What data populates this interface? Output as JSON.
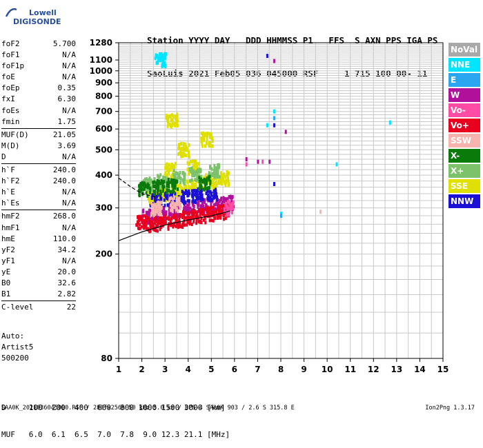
{
  "logo": {
    "line1": "Lowell",
    "line2": "DIGISONDE"
  },
  "header": {
    "line1": "Station YYYY DAY   DDD HHMMSS P1   FFS  S AXN PPS IGA PS",
    "line2": "SaoLuis 2021 Feb05 036 045000 RSF     1 715 100 00- 11"
  },
  "params": {
    "group1": [
      {
        "name": "foF2",
        "value": "5.700"
      },
      {
        "name": "foF1",
        "value": "N/A"
      },
      {
        "name": "foF1p",
        "value": "N/A"
      },
      {
        "name": "foE",
        "value": "N/A"
      },
      {
        "name": "foEp",
        "value": "0.35"
      },
      {
        "name": "fxI",
        "value": "6.30"
      },
      {
        "name": "foEs",
        "value": "N/A"
      },
      {
        "name": "fmin",
        "value": "1.75"
      }
    ],
    "group2": [
      {
        "name": "MUF(D)",
        "value": "21.05"
      },
      {
        "name": "M(D)",
        "value": "3.69"
      },
      {
        "name": "D",
        "value": "N/A"
      }
    ],
    "group3": [
      {
        "name": "h`F",
        "value": "240.0"
      },
      {
        "name": "h`F2",
        "value": "240.0"
      },
      {
        "name": "h`E",
        "value": "N/A"
      },
      {
        "name": "h`Es",
        "value": "N/A"
      }
    ],
    "group4": [
      {
        "name": "hmF2",
        "value": "268.0"
      },
      {
        "name": "hmF1",
        "value": "N/A"
      },
      {
        "name": "hmE",
        "value": "110.0"
      },
      {
        "name": "yF2",
        "value": "34.2"
      },
      {
        "name": "yF1",
        "value": "N/A"
      },
      {
        "name": "yE",
        "value": "20.0"
      },
      {
        "name": "B0",
        "value": "32.6"
      },
      {
        "name": "B1",
        "value": "2.82"
      }
    ],
    "group5": [
      {
        "name": "C-level",
        "value": "22"
      }
    ]
  },
  "auto": {
    "line1": "Auto:",
    "line2": "Artist5",
    "line3": "500200"
  },
  "legend": [
    {
      "label": "NoVal",
      "color": "#a9a9a9"
    },
    {
      "label": "NNE",
      "color": "#00e5ff"
    },
    {
      "label": "E",
      "color": "#2aa6f0"
    },
    {
      "label": "W",
      "color": "#b0109a"
    },
    {
      "label": "Vo-",
      "color": "#ff4da6"
    },
    {
      "label": "Vo+",
      "color": "#e8001e"
    },
    {
      "label": "SSW",
      "color": "#f7b3ae"
    },
    {
      "label": "X-",
      "color": "#0a7a0a"
    },
    {
      "label": "X+",
      "color": "#7cc26a"
    },
    {
      "label": "SSE",
      "color": "#e0e000"
    },
    {
      "label": "NNW",
      "color": "#1a10d6"
    }
  ],
  "muf_table": {
    "line1": "D     100  200  400  600  800 1000 1500 3000 [km]",
    "line2": "MUF   6.0  6.1  6.5  7.0  7.8  9.0 12.3 21.1 [MHz]"
  },
  "footer": {
    "left": "SAA0K_2021036045000.RSF / 280fx256h 50 kHz 5.0 km / DPS-4 SAA0K 903 / 2.6 S 315.8 E",
    "right": "Ion2Png 1.3.17"
  },
  "chart_data": {
    "type": "scatter",
    "xlim": [
      1,
      15
    ],
    "ylim": [
      80,
      1280
    ],
    "x_ticks": [
      1,
      2,
      3,
      4,
      5,
      6,
      7,
      8,
      9,
      10,
      11,
      12,
      13,
      14,
      15
    ],
    "y_ticks": [
      80,
      200,
      300,
      400,
      500,
      600,
      700,
      800,
      900,
      1000,
      1100,
      1280
    ],
    "y_scale": "log",
    "grid": true,
    "series": [
      {
        "name": "SSE",
        "color": "#e0e000",
        "points": [
          [
            2.5,
            330
          ],
          [
            3,
            340
          ],
          [
            3.5,
            350
          ],
          [
            4,
            360
          ],
          [
            4.5,
            370
          ],
          [
            5,
            380
          ],
          [
            5.5,
            390
          ],
          [
            3.2,
            420
          ],
          [
            4.2,
            430
          ],
          [
            3.8,
            500
          ],
          [
            4.8,
            550
          ],
          [
            3.3,
            650
          ]
        ]
      },
      {
        "name": "W",
        "color": "#b0109a",
        "points": [
          [
            2.2,
            280
          ],
          [
            2.8,
            285
          ],
          [
            3.4,
            295
          ],
          [
            4,
            300
          ],
          [
            4.6,
            305
          ],
          [
            5.2,
            310
          ],
          [
            5.7,
            315
          ],
          [
            6.5,
            460
          ],
          [
            7,
            450
          ],
          [
            7.5,
            450
          ],
          [
            7.7,
            1090
          ],
          [
            8.2,
            585
          ]
        ]
      },
      {
        "name": "Vo+",
        "color": "#e8001e",
        "points": [
          [
            2,
            265
          ],
          [
            2.5,
            260
          ],
          [
            3,
            265
          ],
          [
            3.5,
            270
          ],
          [
            4,
            275
          ],
          [
            4.5,
            280
          ],
          [
            5,
            285
          ],
          [
            5.5,
            290
          ]
        ]
      },
      {
        "name": "NNW",
        "color": "#1a10d6",
        "points": [
          [
            2.6,
            320
          ],
          [
            3.2,
            325
          ],
          [
            3.8,
            330
          ],
          [
            4.4,
            335
          ],
          [
            5,
            340
          ],
          [
            7.4,
            1140
          ],
          [
            7.7,
            370
          ],
          [
            7.7,
            620
          ]
        ]
      },
      {
        "name": "NNE",
        "color": "#00e5ff",
        "points": [
          [
            2.8,
            1100
          ],
          [
            7.4,
            620
          ],
          [
            7.7,
            700
          ],
          [
            8,
            285
          ],
          [
            10.4,
            440
          ],
          [
            12.7,
            635
          ]
        ]
      },
      {
        "name": "X+",
        "color": "#7cc26a",
        "points": [
          [
            2.3,
            370
          ],
          [
            2.9,
            380
          ],
          [
            3.6,
            395
          ],
          [
            4.3,
            405
          ],
          [
            5.1,
            415
          ]
        ]
      },
      {
        "name": "X-",
        "color": "#0a7a0a",
        "points": [
          [
            2.1,
            355
          ],
          [
            2.7,
            360
          ],
          [
            3.3,
            365
          ],
          [
            4.7,
            375
          ]
        ]
      },
      {
        "name": "SSW",
        "color": "#f7b3ae",
        "points": [
          [
            2.6,
            300
          ],
          [
            3.4,
            310
          ],
          [
            9.7,
            290
          ]
        ]
      },
      {
        "name": "E",
        "color": "#2aa6f0",
        "points": [
          [
            7.7,
            660
          ],
          [
            8,
            280
          ]
        ]
      },
      {
        "name": "Vo-",
        "color": "#ff4da6",
        "points": [
          [
            6.5,
            440
          ],
          [
            7.2,
            450
          ],
          [
            5.8,
            300
          ]
        ]
      }
    ],
    "traces": [
      {
        "name": "O-trace",
        "color": "#000000",
        "points": [
          [
            1,
            225
          ],
          [
            2,
            243
          ],
          [
            3,
            258
          ],
          [
            4,
            270
          ],
          [
            5,
            280
          ],
          [
            5.5,
            287
          ],
          [
            5.8,
            292
          ]
        ]
      },
      {
        "name": "dashed",
        "color": "#000000",
        "points": [
          [
            1,
            390
          ],
          [
            1.5,
            362
          ],
          [
            2,
            340
          ],
          [
            2.6,
            330
          ]
        ]
      }
    ]
  }
}
